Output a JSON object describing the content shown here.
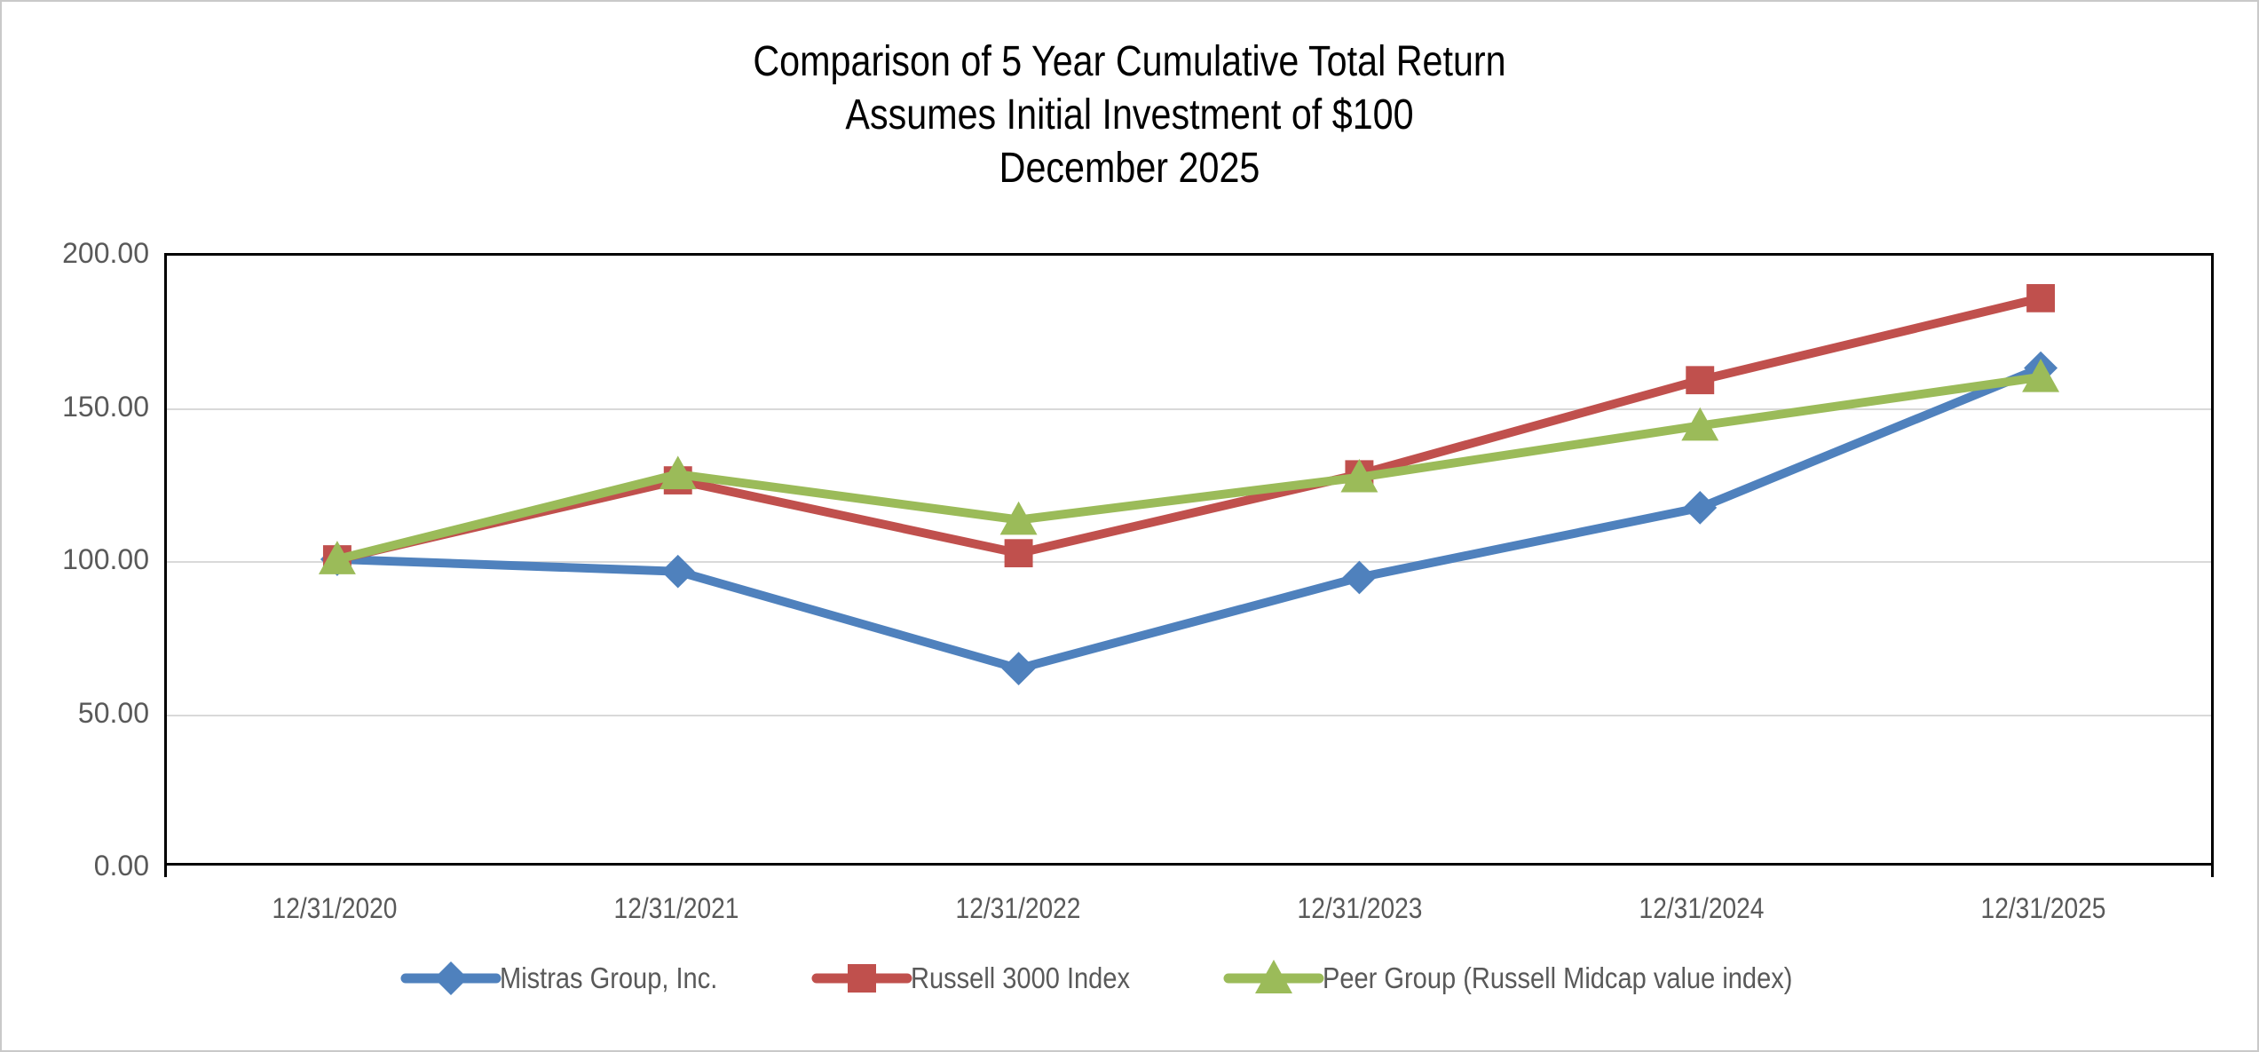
{
  "title": {
    "lines": [
      "Comparison of 5 Year Cumulative Total Return",
      "Assumes Initial Investment of $100",
      "December 2025"
    ]
  },
  "chart_data": {
    "type": "line",
    "categories": [
      "12/31/2020",
      "12/31/2021",
      "12/31/2022",
      "12/31/2023",
      "12/31/2024",
      "12/31/2025"
    ],
    "series": [
      {
        "name": "Mistras Group, Inc.",
        "marker": "diamond",
        "color": "#4F81BD",
        "values": [
          100,
          96,
          64,
          94,
          117,
          163
        ]
      },
      {
        "name": "Russell 3000 Index",
        "marker": "square",
        "color": "#C0504D",
        "values": [
          100,
          126,
          102,
          128,
          159,
          186
        ]
      },
      {
        "name": "Peer Group (Russell Midcap value index)",
        "marker": "triangle",
        "color": "#9BBB59",
        "values": [
          100,
          128,
          113,
          127,
          144,
          160
        ]
      }
    ],
    "ylim": [
      0,
      200
    ],
    "yticks": [
      0,
      50,
      100,
      150,
      200
    ],
    "ytick_labels": [
      "0.00",
      "50.00",
      "100.00",
      "150.00",
      "200.00"
    ],
    "xlabel": "",
    "ylabel": "",
    "grid": "horizontal",
    "legend_position": "bottom"
  },
  "style": {
    "gridline_color": "#d9d9d9",
    "frame_color": "#000000",
    "axis_label_color": "#595959",
    "title_color": "#000000",
    "background": "#ffffff",
    "line_width": 10
  }
}
